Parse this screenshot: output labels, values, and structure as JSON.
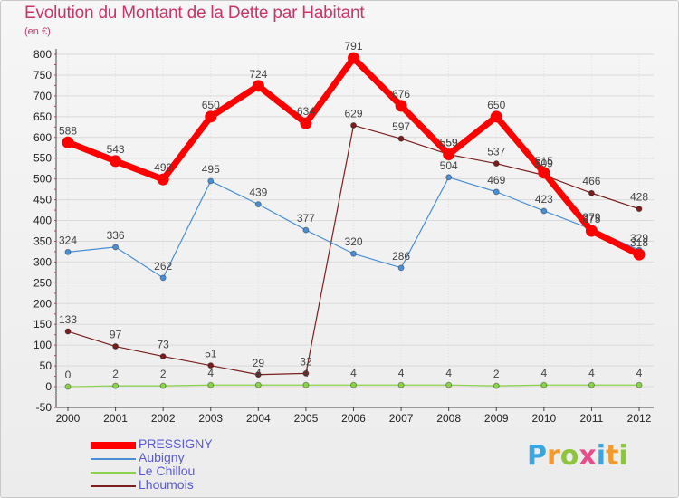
{
  "header": {
    "title": "Evolution du Montant de la Dette par Habitant",
    "unit": "(en €)"
  },
  "brand": {
    "letters": [
      "P",
      "r",
      "o",
      "x",
      "i",
      "t",
      "i"
    ],
    "colors": [
      "#3aa6e0",
      "#f29a2e",
      "#8fc43f",
      "#e84d8a",
      "#3aa6e0",
      "#f29a2e",
      "#8fc43f"
    ]
  },
  "chart_data": {
    "type": "line",
    "title": "Evolution du Montant de la Dette par Habitant",
    "ylabel": "(en €)",
    "xlabel": "",
    "ylim": [
      -50,
      800
    ],
    "yticks": [
      -50,
      0,
      50,
      100,
      150,
      200,
      250,
      300,
      350,
      400,
      450,
      500,
      550,
      600,
      650,
      700,
      750,
      800
    ],
    "grid": true,
    "legend": "bottom-left",
    "categories": [
      "2000",
      "2001",
      "2002",
      "2003",
      "2004",
      "2005",
      "2006",
      "2007",
      "2008",
      "2009",
      "2010",
      "2011",
      "2012"
    ],
    "series": [
      {
        "name": "Lhoumois",
        "color": "#7a1f1f",
        "values": [
          133,
          97,
          73,
          51,
          29,
          32,
          629,
          597,
          559,
          537,
          509,
          466,
          428
        ]
      },
      {
        "name": "Le Chillou",
        "color": "#8ad34a",
        "values": [
          0,
          2,
          2,
          4,
          4,
          4,
          4,
          4,
          4,
          2,
          4,
          4,
          4
        ]
      },
      {
        "name": "Aubigny",
        "color": "#4a8fd4",
        "values": [
          324,
          336,
          262,
          495,
          439,
          377,
          320,
          286,
          504,
          469,
          423,
          379,
          329
        ]
      },
      {
        "name": "PRESSIGNY",
        "color": "#ff0000",
        "values": [
          588,
          543,
          499,
          650,
          724,
          634,
          791,
          676,
          559,
          650,
          515,
          375,
          318
        ]
      }
    ],
    "legend_order": [
      "PRESSIGNY",
      "Aubigny",
      "Le Chillou",
      "Lhoumois"
    ]
  }
}
